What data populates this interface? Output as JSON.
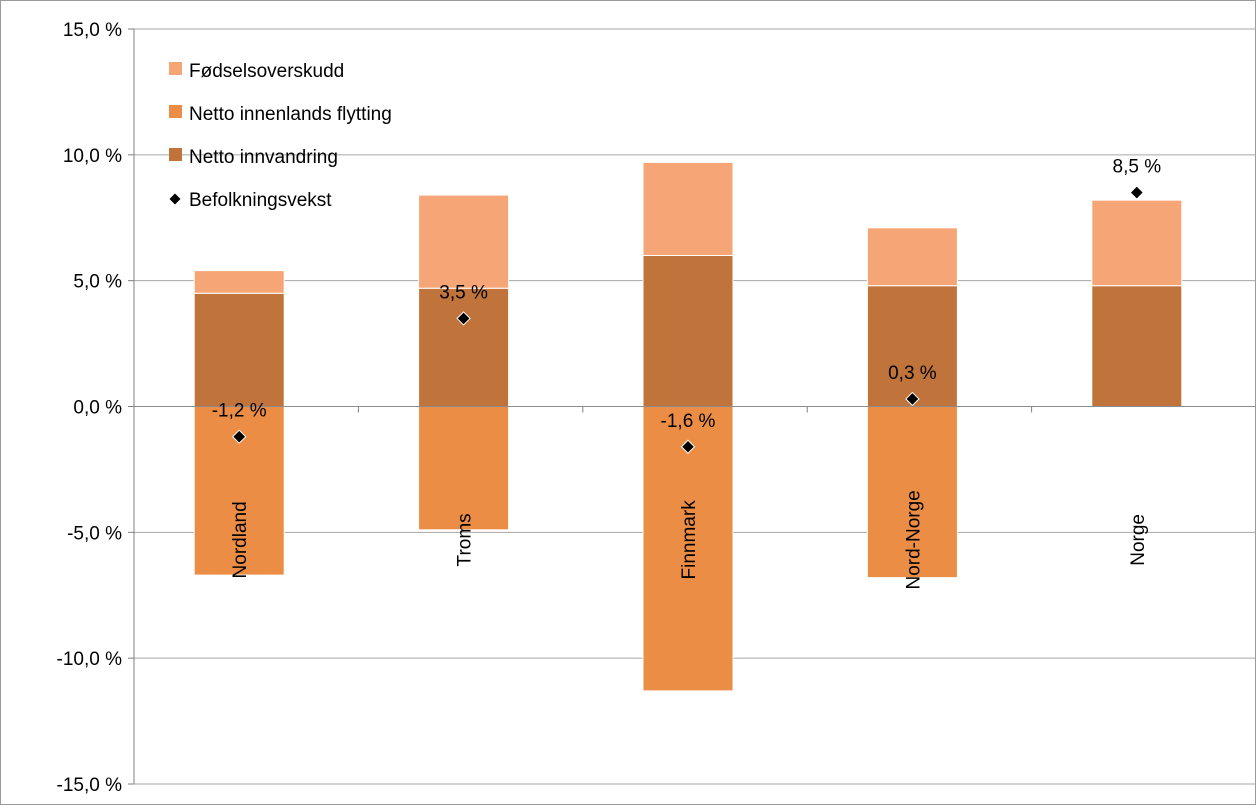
{
  "chart_data": {
    "type": "bar",
    "stacked": true,
    "categories": [
      "Nordland",
      "Troms",
      "Finnmark",
      "Nord-Norge",
      "Norge"
    ],
    "series": [
      {
        "name": "Fødselsoverskudd",
        "kind": "bar",
        "color": "#f6a676",
        "values": [
          0.9,
          3.7,
          3.7,
          2.3,
          3.4
        ]
      },
      {
        "name": "Netto innenlands flytting",
        "kind": "bar",
        "color": "#ec8d45",
        "values": [
          -6.7,
          -4.9,
          -11.3,
          -6.8,
          0.0
        ]
      },
      {
        "name": "Netto innvandring",
        "kind": "bar",
        "color": "#c0733a",
        "values": [
          4.5,
          4.7,
          6.0,
          4.8,
          4.8
        ]
      },
      {
        "name": "Befolkningsvekst",
        "kind": "marker",
        "color": "#000000",
        "values": [
          -1.2,
          3.5,
          -1.6,
          0.3,
          8.5
        ]
      }
    ],
    "data_labels": [
      "-1,2 %",
      "3,5 %",
      "-1,6 %",
      "0,3 %",
      "8,5 %"
    ],
    "ylim": [
      -15,
      15
    ],
    "yticks": [
      15,
      10,
      5,
      0,
      -5,
      -10,
      -15
    ],
    "ytick_labels": [
      "15,0 %",
      "10,0 %",
      "5,0 %",
      "0,0 %",
      "-5,0 %",
      "-10,0 %",
      "-15,0 %"
    ],
    "title": "",
    "xlabel": "",
    "ylabel": "",
    "grid": true,
    "legend_position": "top-left"
  }
}
